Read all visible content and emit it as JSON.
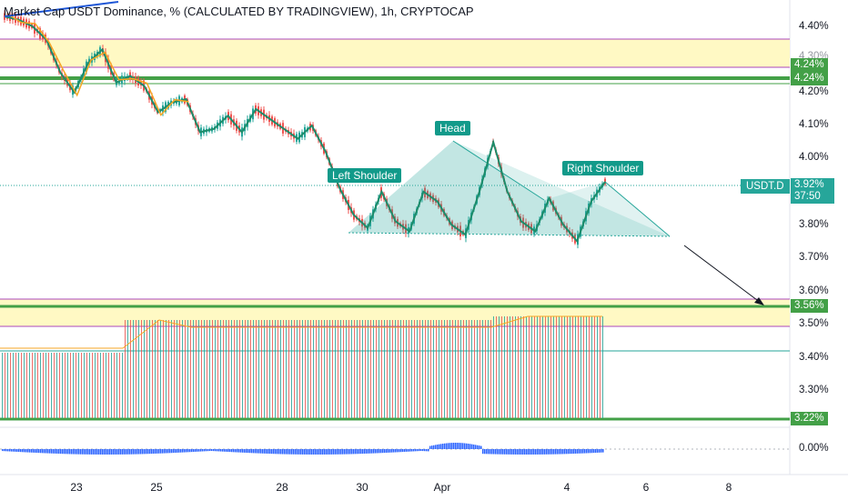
{
  "header": {
    "title": "Market Cap USDT Dominance, % (CALCULATED BY TRADINGVIEW), 1h, CRYPTOCAP"
  },
  "price_axis": {
    "labels": [
      "4.40%",
      "4.20%",
      "4.10%",
      "4.00%",
      "3.80%",
      "3.70%",
      "3.60%",
      "3.50%",
      "3.40%",
      "3.30%",
      "0.00%"
    ],
    "partial_label": "4.30%"
  },
  "level_tags": {
    "upper_a": "4.24%",
    "upper_b": "4.24%",
    "lower": "3.56%",
    "bottom": "3.22%"
  },
  "current_price": {
    "symbol": "USDT.D",
    "price": "3.92%",
    "countdown": "37:50"
  },
  "time_axis": {
    "labels": [
      "23",
      "25",
      "28",
      "30",
      "Apr",
      "4",
      "6",
      "8"
    ]
  },
  "annotations": {
    "left_shoulder": "Left Shoulder",
    "head": "Head",
    "right_shoulder": "Right Shoulder"
  },
  "colors": {
    "up": "#26a69a",
    "down": "#ef5350",
    "zigzag": "#1e8c6a",
    "zigzag_alt": "#f5a623",
    "zone_fill": "#fff9c4",
    "zone_line": "#ab47bc",
    "support": "#43a047",
    "oscillator": "#2962ff",
    "trendline": "#1e56d6"
  },
  "chart_data": {
    "type": "candlestick",
    "pattern": "head-and-shoulders",
    "y_unit": "%",
    "ylim": [
      3.22,
      4.45
    ],
    "x_ticks": [
      "23",
      "25",
      "28",
      "30",
      "Apr",
      "4",
      "6",
      "8"
    ],
    "levels": [
      {
        "name": "upper zone top",
        "value": 4.35
      },
      {
        "name": "upper zone bottom",
        "value": 4.26
      },
      {
        "name": "upper support",
        "value": 4.24
      },
      {
        "name": "lower zone top",
        "value": 3.57
      },
      {
        "name": "lower support",
        "value": 3.56
      },
      {
        "name": "lower zone bottom",
        "value": 3.49
      },
      {
        "name": "bottom support",
        "value": 3.22
      }
    ],
    "zigzag_path": [
      [
        4.43,
        4.42
      ],
      [
        4.4,
        4.36
      ],
      [
        4.26,
        4.2
      ],
      [
        4.29,
        4.33
      ],
      [
        4.23,
        4.25
      ],
      [
        4.22,
        4.14
      ],
      [
        4.17,
        4.18
      ],
      [
        4.08,
        4.09
      ],
      [
        4.13,
        4.08
      ],
      [
        4.15,
        4.12
      ],
      [
        4.09,
        4.06
      ],
      [
        4.1,
        4.02
      ],
      [
        3.91,
        3.83
      ],
      [
        3.79,
        3.9
      ],
      [
        3.81,
        3.78
      ],
      [
        3.9,
        3.87
      ],
      [
        3.8,
        3.77
      ],
      [
        3.9,
        4.05
      ],
      [
        3.9,
        3.81
      ],
      [
        3.78,
        3.88
      ],
      [
        3.8,
        3.75
      ],
      [
        3.87,
        3.93
      ]
    ],
    "current_value": 3.92
  }
}
